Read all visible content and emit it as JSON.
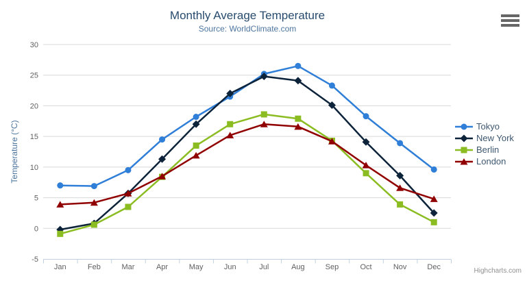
{
  "chart_data": {
    "type": "line",
    "title": "Monthly Average Temperature",
    "subtitle": "Source: WorldClimate.com",
    "categories": [
      "Jan",
      "Feb",
      "Mar",
      "Apr",
      "May",
      "Jun",
      "Jul",
      "Aug",
      "Sep",
      "Oct",
      "Nov",
      "Dec"
    ],
    "xlabel": "",
    "ylabel": "Temperature (°C)",
    "ylim": [
      -5,
      30
    ],
    "ytick_step": 5,
    "grid": true,
    "legend_position": "right",
    "series": [
      {
        "name": "Tokyo",
        "marker": "circle",
        "color": "#2f7ed8",
        "values": [
          7.0,
          6.9,
          9.5,
          14.5,
          18.2,
          21.5,
          25.2,
          26.5,
          23.3,
          18.3,
          13.9,
          9.6
        ]
      },
      {
        "name": "New York",
        "marker": "diamond",
        "color": "#0d233a",
        "values": [
          -0.2,
          0.8,
          5.7,
          11.3,
          17.0,
          22.0,
          24.8,
          24.1,
          20.1,
          14.1,
          8.6,
          2.5
        ]
      },
      {
        "name": "Berlin",
        "marker": "square",
        "color": "#8bbc21",
        "values": [
          -0.9,
          0.6,
          3.5,
          8.4,
          13.5,
          17.0,
          18.6,
          17.9,
          14.3,
          9.0,
          3.9,
          1.0
        ]
      },
      {
        "name": "London",
        "marker": "triangle",
        "color": "#910000",
        "values": [
          3.9,
          4.2,
          5.7,
          8.5,
          11.9,
          15.2,
          17.0,
          16.6,
          14.2,
          10.3,
          6.6,
          4.8
        ]
      }
    ]
  },
  "credits": {
    "label": "Highcharts.com"
  },
  "theme": {
    "title_color": "#274b6d",
    "subtitle_color": "#4d759e",
    "axis_title_color": "#4d759e",
    "tick_label_color": "#606060",
    "grid_line_color": "#d8d8d8",
    "axis_line_color": "#c0d0e0",
    "legend_text_color": "#3e576f",
    "credits_color": "#909090",
    "export_icon_color": "#666666",
    "background": "#ffffff"
  }
}
